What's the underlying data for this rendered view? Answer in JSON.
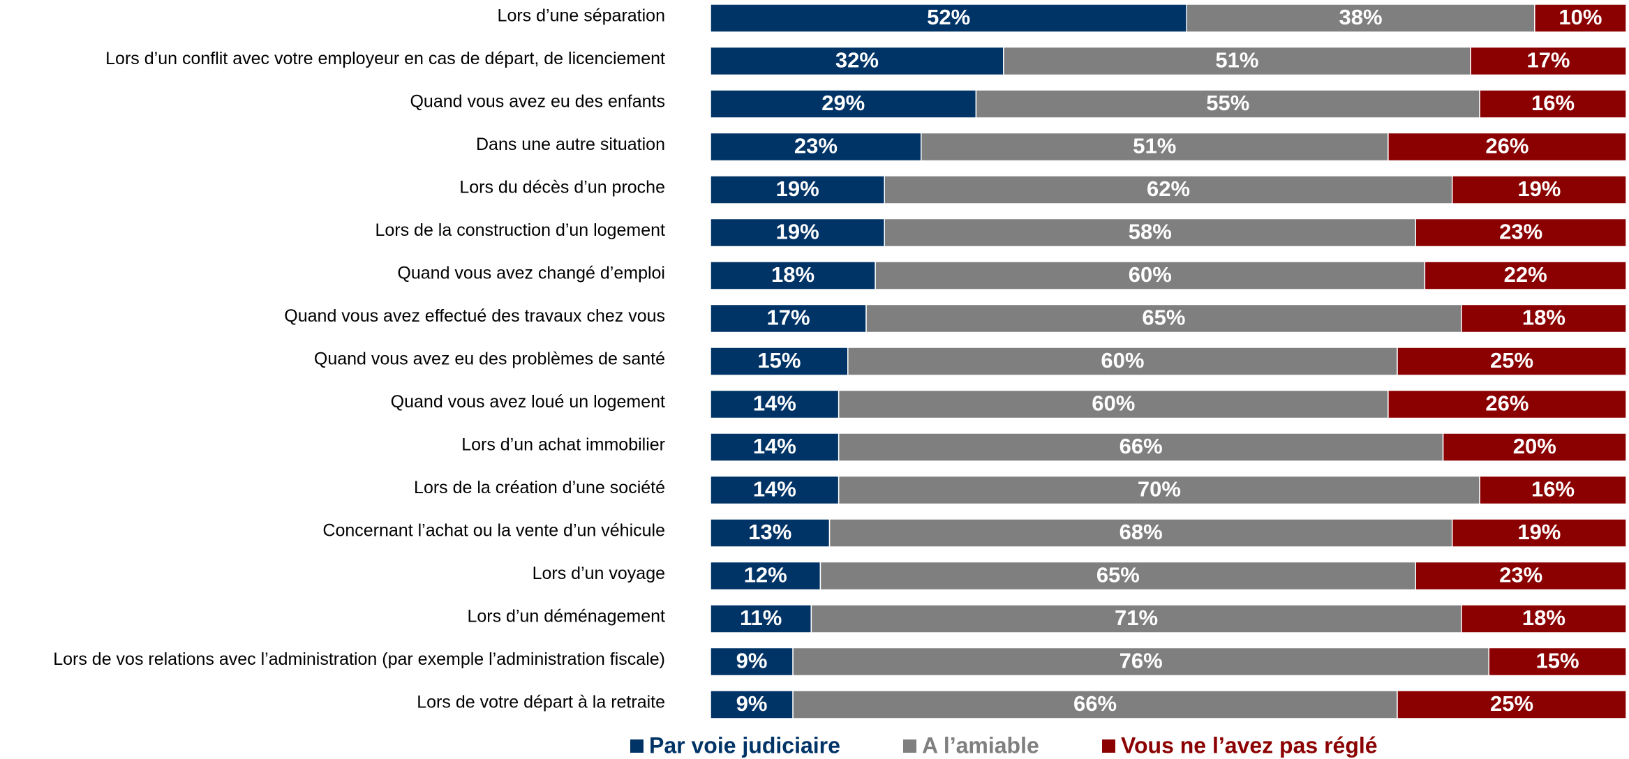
{
  "chart_data": {
    "type": "stacked_bar_horizontal",
    "categories": [
      "Lors d’une séparation",
      "Lors d’un conflit avec votre employeur en cas de départ, de licenciement",
      "Quand vous avez eu des enfants",
      "Dans une autre situation",
      "Lors du décès d’un proche",
      "Lors de la construction d’un logement",
      "Quand vous avez changé d’emploi",
      "Quand vous avez effectué des travaux chez vous",
      "Quand vous avez eu des problèmes de santé",
      "Quand vous avez loué un logement",
      "Lors d’un achat immobilier",
      "Lors de la création d’une société",
      "Concernant l’achat ou la vente d’un véhicule",
      "Lors d’un voyage",
      "Lors d’un déménagement",
      "Lors de vos relations avec l’administration (par exemple l’administration fiscale)",
      "Lors de votre départ à la retraite"
    ],
    "xlim": [
      0,
      100
    ],
    "series": [
      {
        "name": "Par voie judiciaire",
        "color": "#003366",
        "values": [
          52,
          32,
          29,
          23,
          19,
          19,
          18,
          17,
          15,
          14,
          14,
          14,
          13,
          12,
          11,
          9,
          9
        ],
        "value_labels": [
          "52%",
          "32%",
          "29%",
          "23%",
          "19%",
          "19%",
          "18%",
          "17%",
          "15%",
          "14%",
          "14%",
          "14%",
          "13%",
          "12%",
          "11%",
          "9%",
          "9%"
        ]
      },
      {
        "name": "A l’amiable",
        "color": "#7f7f7f",
        "values": [
          38,
          51,
          55,
          51,
          62,
          58,
          60,
          65,
          60,
          60,
          66,
          70,
          68,
          65,
          71,
          76,
          66
        ],
        "value_labels": [
          "38%",
          "51%",
          "55%",
          "51%",
          "62%",
          "58%",
          "60%",
          "65%",
          "60%",
          "60%",
          "66%",
          "70%",
          "68%",
          "65%",
          "71%",
          "76%",
          "66%"
        ]
      },
      {
        "name": "Vous ne l’avez pas réglé",
        "color": "#8b0000",
        "values": [
          10,
          17,
          16,
          26,
          19,
          23,
          22,
          18,
          25,
          26,
          20,
          16,
          19,
          23,
          18,
          15,
          25
        ],
        "value_labels": [
          "10%",
          "17%",
          "16%",
          "26%",
          "19%",
          "23%",
          "22%",
          "18%",
          "25%",
          "26%",
          "20%",
          "16%",
          "19%",
          "23%",
          "18%",
          "15%",
          "25%"
        ]
      }
    ]
  }
}
